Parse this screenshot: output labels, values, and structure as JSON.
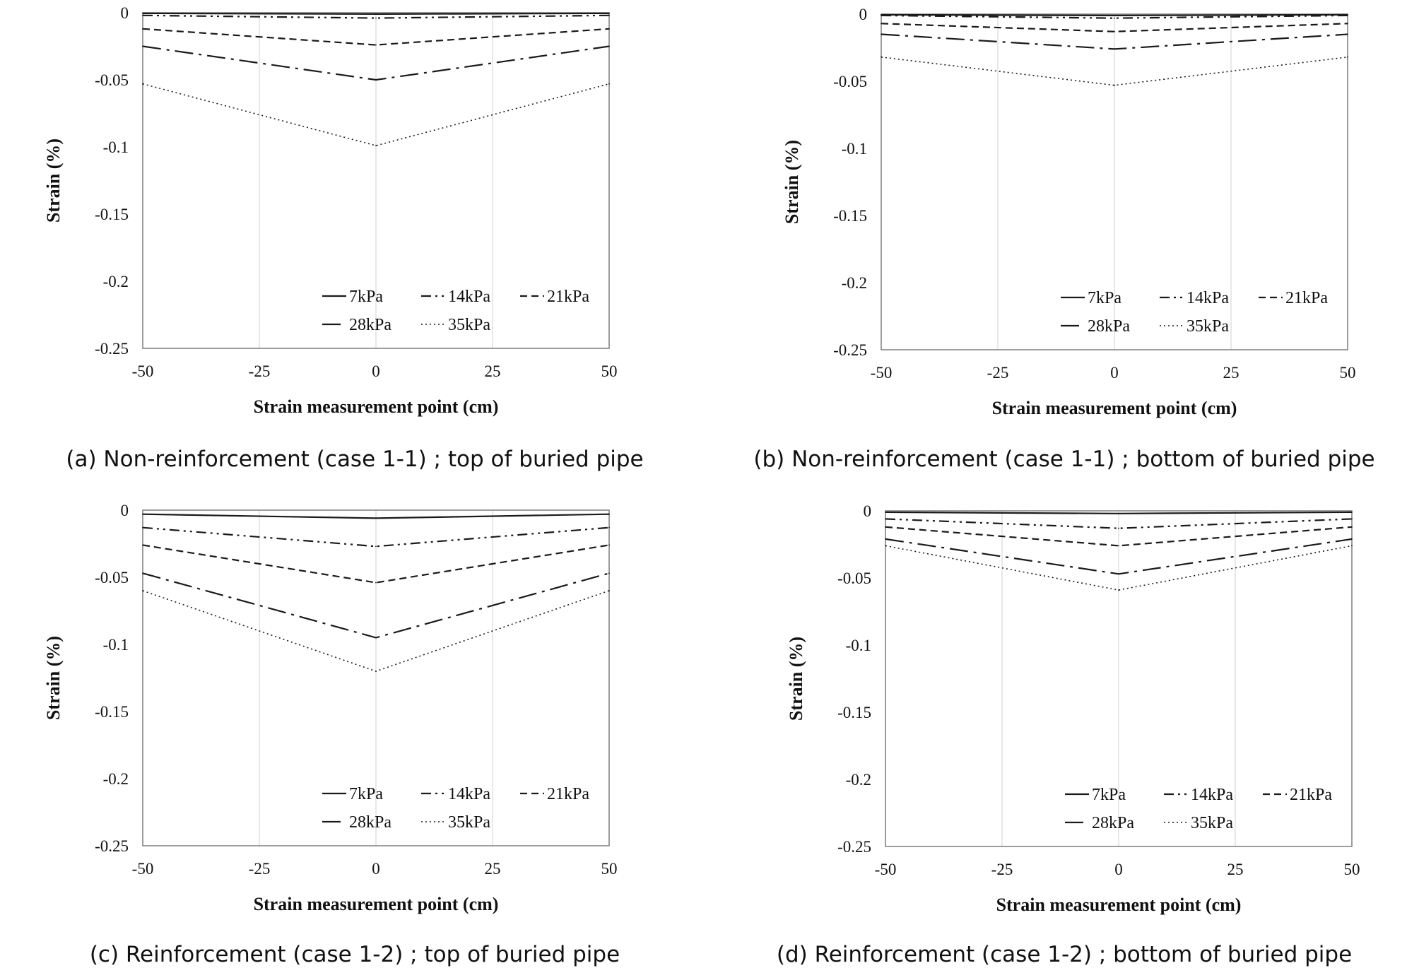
{
  "chart_data": [
    {
      "type": "line",
      "caption": "(a) Non-reinforcement (case 1-1) ; top of buried pipe",
      "xlabel": "Strain measurement point (cm)",
      "ylabel": "Strain (%)",
      "xlim": [
        -50,
        50
      ],
      "ylim": [
        -0.25,
        0
      ],
      "x_ticks": [
        "-50",
        "-25",
        "0",
        "25",
        "50"
      ],
      "y_ticks": [
        "0",
        "-0.05",
        "-0.1",
        "-0.15",
        "-0.2",
        "-0.25"
      ],
      "grid": "vertical",
      "legend_position": "bottom-right",
      "x": [
        -50,
        0,
        50
      ],
      "series": [
        {
          "name": "7kPa",
          "values": [
            -0.0005,
            -0.001,
            -0.0005
          ],
          "style": "solid"
        },
        {
          "name": "14kPa",
          "values": [
            -0.002,
            -0.004,
            -0.002
          ],
          "style": "dashdotdot"
        },
        {
          "name": "21kPa",
          "values": [
            -0.012,
            -0.024,
            -0.012
          ],
          "style": "dashed"
        },
        {
          "name": "28kPa",
          "values": [
            -0.025,
            -0.05,
            -0.025
          ],
          "style": "longdashdot"
        },
        {
          "name": "35kPa",
          "values": [
            -0.053,
            -0.099,
            -0.053
          ],
          "style": "dotted"
        }
      ]
    },
    {
      "type": "line",
      "caption": "(b) Non-reinforcement (case 1-1) ; bottom of buried pipe",
      "xlabel": "Strain measurement point (cm)",
      "ylabel": "Strain (%)",
      "xlim": [
        -50,
        50
      ],
      "ylim": [
        -0.25,
        0
      ],
      "x_ticks": [
        "-50",
        "-25",
        "0",
        "25",
        "50"
      ],
      "y_ticks": [
        "0",
        "-0.05",
        "-0.1",
        "-0.15",
        "-0.2",
        "-0.25"
      ],
      "grid": "vertical",
      "legend_position": "bottom-right",
      "x": [
        -50,
        0,
        50
      ],
      "series": [
        {
          "name": "7kPa",
          "values": [
            -0.0005,
            -0.001,
            -0.0005
          ],
          "style": "solid"
        },
        {
          "name": "14kPa",
          "values": [
            -0.001,
            -0.003,
            -0.001
          ],
          "style": "dashdotdot"
        },
        {
          "name": "21kPa",
          "values": [
            -0.007,
            -0.013,
            -0.007
          ],
          "style": "dashed"
        },
        {
          "name": "28kPa",
          "values": [
            -0.015,
            -0.026,
            -0.015
          ],
          "style": "longdashdot"
        },
        {
          "name": "35kPa",
          "values": [
            -0.032,
            -0.053,
            -0.032
          ],
          "style": "dotted"
        }
      ]
    },
    {
      "type": "line",
      "caption": "(c) Reinforcement (case 1-2) ; top of buried pipe",
      "xlabel": "Strain measurement point (cm)",
      "ylabel": "Strain (%)",
      "xlim": [
        -50,
        50
      ],
      "ylim": [
        -0.25,
        0
      ],
      "x_ticks": [
        "-50",
        "-25",
        "0",
        "25",
        "50"
      ],
      "y_ticks": [
        "0",
        "-0.05",
        "-0.1",
        "-0.15",
        "-0.2",
        "-0.25"
      ],
      "grid": "vertical",
      "legend_position": "bottom-right",
      "x": [
        -50,
        0,
        50
      ],
      "series": [
        {
          "name": "7kPa",
          "values": [
            -0.003,
            -0.006,
            -0.003
          ],
          "style": "solid"
        },
        {
          "name": "14kPa",
          "values": [
            -0.013,
            -0.027,
            -0.013
          ],
          "style": "dashdotdot"
        },
        {
          "name": "21kPa",
          "values": [
            -0.026,
            -0.054,
            -0.026
          ],
          "style": "dashed"
        },
        {
          "name": "28kPa",
          "values": [
            -0.047,
            -0.095,
            -0.047
          ],
          "style": "longdashdot"
        },
        {
          "name": "35kPa",
          "values": [
            -0.06,
            -0.12,
            -0.06
          ],
          "style": "dotted"
        }
      ]
    },
    {
      "type": "line",
      "caption": "(d) Reinforcement (case 1-2) ; bottom of buried pipe",
      "xlabel": "Strain measurement point (cm)",
      "ylabel": "Strain (%)",
      "xlim": [
        -50,
        50
      ],
      "ylim": [
        -0.25,
        0
      ],
      "x_ticks": [
        "-50",
        "-25",
        "0",
        "25",
        "50"
      ],
      "y_ticks": [
        "0",
        "-0.05",
        "-0.1",
        "-0.15",
        "-0.2",
        "-0.25"
      ],
      "grid": "vertical",
      "legend_position": "bottom-right",
      "x": [
        -50,
        0,
        50
      ],
      "series": [
        {
          "name": "7kPa",
          "values": [
            -0.001,
            -0.002,
            -0.001
          ],
          "style": "solid"
        },
        {
          "name": "14kPa",
          "values": [
            -0.006,
            -0.013,
            -0.006
          ],
          "style": "dashdotdot"
        },
        {
          "name": "21kPa",
          "values": [
            -0.012,
            -0.026,
            -0.012
          ],
          "style": "dashed"
        },
        {
          "name": "28kPa",
          "values": [
            -0.021,
            -0.047,
            -0.021
          ],
          "style": "longdashdot"
        },
        {
          "name": "35kPa",
          "values": [
            -0.026,
            -0.059,
            -0.026
          ],
          "style": "dotted"
        }
      ]
    }
  ]
}
